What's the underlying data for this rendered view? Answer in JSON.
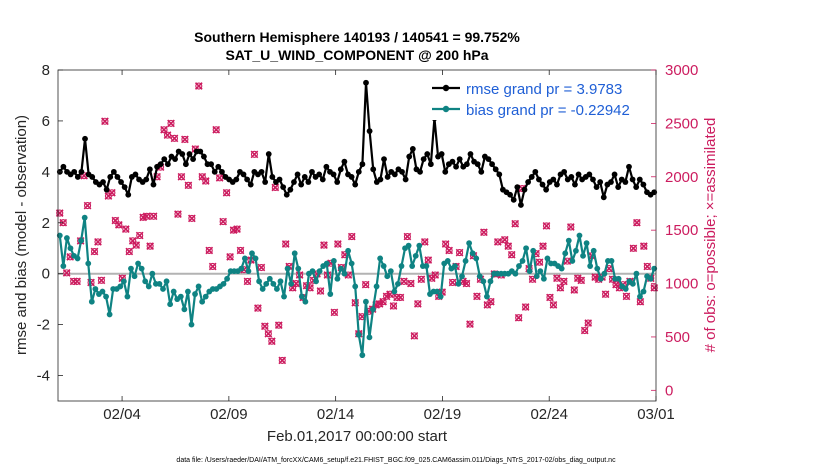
{
  "chart_data": {
    "type": "line",
    "title_line1": "Southern Hemisphere 140193 / 140541 = 99.752%",
    "title_line2": "SAT_U_WIND_COMPONENT @ 200 hPa",
    "xlabel": "Feb.01,2017 00:00:00 start",
    "ylabel_left": "rmse and bias (model - observation)",
    "ylabel_right": "# of obs: o=possible; ×=assimilated",
    "footnote": "data file: /Users/raeder/DAI/ATM_forcXX/CAM6_setup/f.e21.FHIST_BGC.f09_025.CAM6assim.011/Diags_NTrS_2017-02/obs_diag_output.nc",
    "x_range_days": [
      0,
      28
    ],
    "x_ticks": [
      {
        "day": 3,
        "label": "02/04"
      },
      {
        "day": 8,
        "label": "02/09"
      },
      {
        "day": 13,
        "label": "02/14"
      },
      {
        "day": 18,
        "label": "02/19"
      },
      {
        "day": 23,
        "label": "02/24"
      },
      {
        "day": 28,
        "label": "03/01"
      }
    ],
    "ylim_left": [
      -5,
      8
    ],
    "yticks_left": [
      "-4",
      "-2",
      "0",
      "2",
      "4",
      "6",
      "8"
    ],
    "ylim_right": [
      -100,
      3000
    ],
    "yticks_right": [
      "0",
      "500",
      "1000",
      "1500",
      "2000",
      "2500",
      "3000"
    ],
    "series": [
      {
        "name": "rmse grand pr = 3.9783",
        "color": "#000000",
        "axis": "left",
        "values": [
          4.0,
          4.2,
          4.0,
          3.9,
          4.0,
          3.8,
          4.0,
          5.3,
          3.9,
          3.8,
          3.6,
          3.5,
          3.6,
          3.3,
          3.8,
          4.0,
          3.8,
          3.6,
          3.4,
          3.1,
          3.8,
          3.9,
          3.7,
          3.6,
          3.7,
          4.1,
          3.5,
          4.2,
          4.3,
          4.5,
          4.3,
          4.6,
          4.5,
          4.8,
          4.7,
          4.3,
          4.7,
          4.5,
          4.8,
          4.8,
          4.6,
          4.3,
          4.3,
          4.0,
          4.2,
          4.0,
          3.8,
          3.7,
          3.6,
          3.7,
          4.0,
          3.9,
          3.7,
          3.5,
          4.0,
          3.9,
          4.0,
          3.6,
          4.7,
          3.8,
          3.6,
          3.7,
          3.4,
          3.1,
          3.3,
          3.6,
          3.9,
          3.5,
          3.8,
          3.6,
          4.0,
          3.8,
          3.9,
          3.7,
          4.2,
          4.0,
          3.9,
          3.6,
          4.1,
          4.4,
          3.9,
          3.8,
          3.5,
          4.0,
          4.3,
          7.5,
          5.6,
          4.1,
          3.6,
          3.7,
          4.5,
          3.8,
          4.0,
          3.9,
          4.1,
          4.0,
          3.7,
          4.6,
          4.9,
          4.1,
          4.0,
          4.5,
          4.7,
          4.3,
          6.1,
          4.6,
          4.7,
          4.0,
          4.3,
          4.4,
          4.2,
          4.5,
          4.2,
          4.3,
          4.7,
          4.4,
          4.3,
          4.0,
          4.6,
          4.5,
          4.3,
          4.1,
          3.9,
          3.3,
          3.2,
          3.1,
          2.9,
          3.4,
          2.7,
          3.3,
          3.6,
          3.8,
          4.0,
          3.7,
          3.5,
          3.3,
          3.6,
          3.7,
          3.5,
          3.9,
          4.0,
          3.7,
          3.8,
          3.5,
          3.9,
          3.7,
          3.8,
          3.9,
          3.7,
          3.4,
          3.6,
          3.0,
          3.5,
          3.6,
          3.9,
          3.4,
          3.7,
          3.6,
          4.2,
          3.7,
          3.4,
          3.7,
          3.5,
          3.2,
          3.1,
          3.2
        ]
      },
      {
        "name": "bias grand pr = -0.22942",
        "color": "#0f8383",
        "axis": "left",
        "values": [
          1.5,
          0.3,
          1.4,
          1.0,
          0.7,
          0.6,
          1.3,
          2.2,
          0.4,
          -1.1,
          -0.6,
          -0.8,
          -0.7,
          -0.9,
          -1.6,
          -0.6,
          -0.6,
          -0.5,
          -0.3,
          -0.9,
          0.2,
          -0.1,
          0.4,
          0.2,
          -0.3,
          -0.5,
          0.0,
          -0.4,
          -0.4,
          -0.6,
          -0.3,
          -1.2,
          -0.7,
          -1.0,
          -0.9,
          -1.4,
          -0.7,
          -2.0,
          -0.8,
          -0.5,
          -1.1,
          -0.9,
          -0.7,
          -0.6,
          -0.6,
          -0.5,
          -0.4,
          -0.2,
          0.1,
          0.1,
          0.1,
          0.2,
          0.6,
          0.1,
          0.8,
          0.6,
          -0.3,
          -0.6,
          -0.4,
          -0.2,
          -0.4,
          -0.6,
          -0.3,
          -0.9,
          0.2,
          -0.4,
          0.8,
          0.2,
          -0.9,
          -1.1,
          0.0,
          0.1,
          -0.3,
          0.1,
          0.3,
          0.4,
          -0.8,
          0.5,
          -0.2,
          0.2,
          0.0,
          0.9,
          0.4,
          -0.5,
          -2.4,
          -3.2,
          -1.1,
          -2.5,
          -1.4,
          -0.5,
          0.6,
          0.3,
          -0.1,
          0.1,
          -0.7,
          -0.4,
          0.3,
          1.0,
          1.1,
          0.3,
          0.7,
          1.1,
          0.3,
          0.3,
          -0.8,
          -0.7,
          -0.7,
          -0.9,
          0.4,
          0.5,
          0.2,
          0.3,
          -0.4,
          -0.1,
          0.5,
          1.2,
          0.8,
          0.6,
          -0.1,
          -0.3,
          -0.9,
          -0.3,
          0.0,
          0.0,
          0.0,
          0.0,
          0.0,
          0.1,
          0.0,
          0.3,
          0.5,
          1.0,
          0.1,
          0.9,
          -0.1,
          0.1,
          -0.2,
          0.6,
          0.4,
          0.4,
          0.3,
          0.2,
          0.8,
          1.3,
          0.5,
          0.9,
          1.5,
          0.7,
          1.2,
          0.3,
          0.9,
          0.2,
          -0.2,
          0.0,
          0.5,
          0.5,
          -0.2,
          -0.2,
          -0.5,
          -0.6,
          -0.3,
          -0.4,
          0.0,
          -0.9,
          -0.7,
          -0.1,
          -0.2,
          0.2
        ]
      },
      {
        "name": "possible obs",
        "color": "#cc1c5f",
        "axis": "right",
        "marker": "o",
        "values": [
          1660,
          1570,
          1100,
          1250,
          1020,
          1020,
          1400,
          2010,
          1730,
          1010,
          1300,
          1390,
          1030,
          2520,
          1820,
          1850,
          1590,
          1550,
          1050,
          1510,
          1300,
          1400,
          1360,
          1450,
          1620,
          1630,
          1350,
          1630,
          2000,
          2090,
          2440,
          2390,
          2500,
          2360,
          1650,
          2000,
          2350,
          1920,
          1610,
          2260,
          2850,
          2000,
          1960,
          1310,
          1160,
          2440,
          1990,
          1580,
          1850,
          1250,
          1500,
          1510,
          1310,
          1130,
          1020,
          1220,
          2210,
          770,
          1150,
          600,
          530,
          460,
          1900,
          610,
          280,
          1370,
          1160,
          960,
          1000,
          1080,
          870,
          980,
          960,
          1030,
          1090,
          930,
          1360,
          1080,
          1190,
          730,
          1370,
          1150,
          1270,
          1080,
          1440,
          820,
          530,
          690,
          990,
          740,
          760,
          800,
          810,
          830,
          880,
          900,
          790,
          870,
          870,
          1020,
          1440,
          1000,
          510,
          810,
          1040,
          1390,
          1220,
          1050,
          1080,
          880,
          920,
          1370,
          1310,
          1010,
          1160,
          1290,
          1020,
          1000,
          620,
          1260,
          880,
          1040,
          1480,
          800,
          830,
          1090,
          1390,
          1080,
          1410,
          1350,
          1270,
          1560,
          680,
          1890,
          780,
          1140,
          1040,
          1280,
          1200,
          1350,
          1540,
          870,
          800,
          1050,
          960,
          1020,
          1210,
          1530,
          940,
          1050,
          1030,
          560,
          630,
          1260,
          1060,
          1040,
          1060,
          900,
          1140,
          1040,
          990,
          960,
          990,
          880,
          1020,
          1330,
          1570,
          830,
          1350,
          1160,
          1050,
          960
        ]
      },
      {
        "name": "assimilated obs",
        "color": "#cc1c5f",
        "axis": "right",
        "marker": "x",
        "values": [
          1660,
          1570,
          1100,
          1250,
          1020,
          1020,
          1400,
          2010,
          1730,
          1010,
          1300,
          1390,
          1030,
          2520,
          1820,
          1850,
          1590,
          1550,
          1050,
          1510,
          1300,
          1400,
          1360,
          1450,
          1620,
          1630,
          1350,
          1630,
          2000,
          2090,
          2440,
          2390,
          2500,
          2360,
          1650,
          2000,
          2350,
          1920,
          1610,
          2260,
          2850,
          2000,
          1960,
          1310,
          1160,
          2440,
          1990,
          1580,
          1850,
          1250,
          1500,
          1510,
          1310,
          1130,
          1020,
          1220,
          2210,
          770,
          1150,
          600,
          530,
          460,
          1900,
          610,
          280,
          1370,
          1160,
          960,
          1000,
          1080,
          870,
          980,
          960,
          1030,
          1090,
          930,
          1360,
          1080,
          1190,
          730,
          1370,
          1150,
          1270,
          1080,
          1440,
          820,
          530,
          690,
          990,
          740,
          760,
          800,
          810,
          830,
          880,
          900,
          790,
          870,
          870,
          1020,
          1440,
          1000,
          510,
          810,
          1040,
          1390,
          1220,
          1050,
          1080,
          880,
          920,
          1370,
          1310,
          1010,
          1160,
          1290,
          1020,
          1000,
          620,
          1260,
          880,
          1040,
          1480,
          800,
          830,
          1090,
          1390,
          1080,
          1410,
          1350,
          1270,
          1560,
          680,
          1890,
          780,
          1140,
          1040,
          1280,
          1200,
          1350,
          1540,
          870,
          800,
          1050,
          960,
          1020,
          1210,
          1530,
          940,
          1050,
          1030,
          560,
          630,
          1260,
          1060,
          1040,
          1060,
          900,
          1140,
          1040,
          990,
          960,
          990,
          880,
          1020,
          1330,
          1570,
          830,
          1350,
          1160,
          1050,
          960
        ]
      }
    ],
    "zero_line": 0
  }
}
